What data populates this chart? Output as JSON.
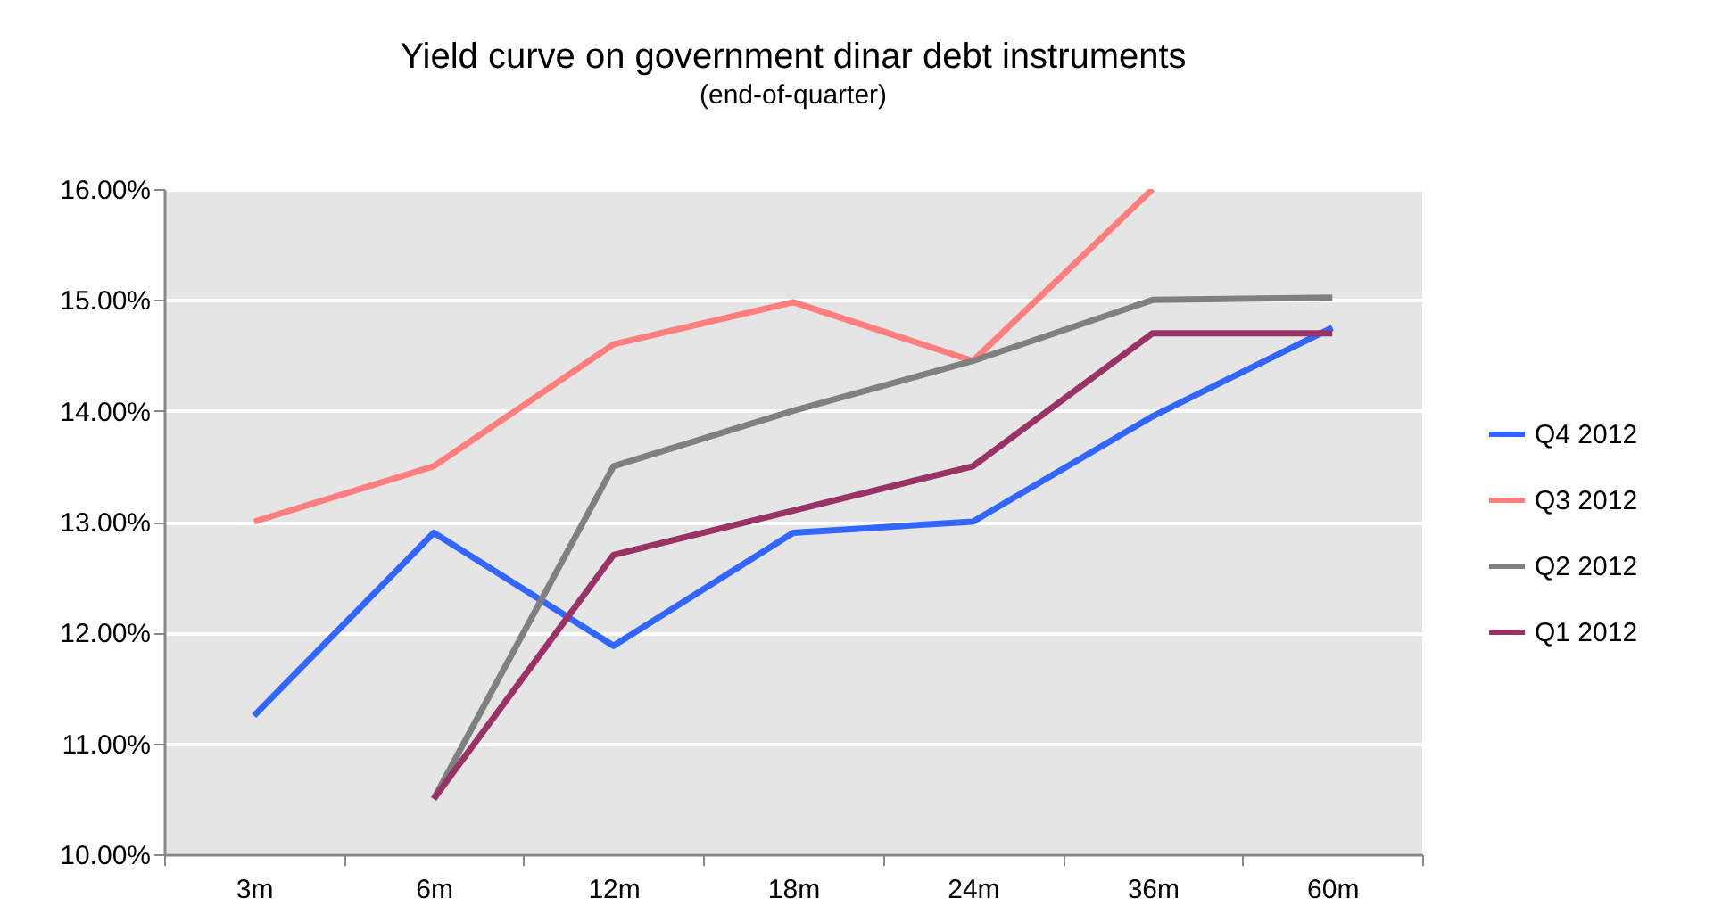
{
  "chart_data": {
    "type": "line",
    "title": "Yield curve on government dinar debt instruments",
    "subtitle": "(end-of-quarter)",
    "categories": [
      "3m",
      "6m",
      "12m",
      "18m",
      "24m",
      "36m",
      "60m"
    ],
    "series": [
      {
        "name": "Q4 2012",
        "color": "#3366ff",
        "values": [
          11.25,
          12.9,
          11.88,
          12.9,
          13.0,
          13.95,
          14.75
        ]
      },
      {
        "name": "Q3 2012",
        "color": "#ff7f7f",
        "values": [
          13.0,
          13.5,
          14.6,
          14.98,
          14.45,
          16.0,
          null
        ]
      },
      {
        "name": "Q2 2012",
        "color": "#808080",
        "values": [
          null,
          10.5,
          13.5,
          14.0,
          14.45,
          15.0,
          15.02
        ]
      },
      {
        "name": "Q1 2012",
        "color": "#993366",
        "values": [
          null,
          10.5,
          12.7,
          13.1,
          13.5,
          14.7,
          14.7
        ]
      }
    ],
    "ylim": [
      10,
      16
    ],
    "yticks": [
      {
        "value": 10,
        "label": "10.00%"
      },
      {
        "value": 11,
        "label": "11.00%"
      },
      {
        "value": 12,
        "label": "12.00%"
      },
      {
        "value": 13,
        "label": "13.00%"
      },
      {
        "value": 14,
        "label": "14.00%"
      },
      {
        "value": 15,
        "label": "15.00%"
      },
      {
        "value": 16,
        "label": "16.00%"
      }
    ],
    "grid": "y",
    "legend": "right",
    "marker": "none",
    "line_style": "solid"
  }
}
